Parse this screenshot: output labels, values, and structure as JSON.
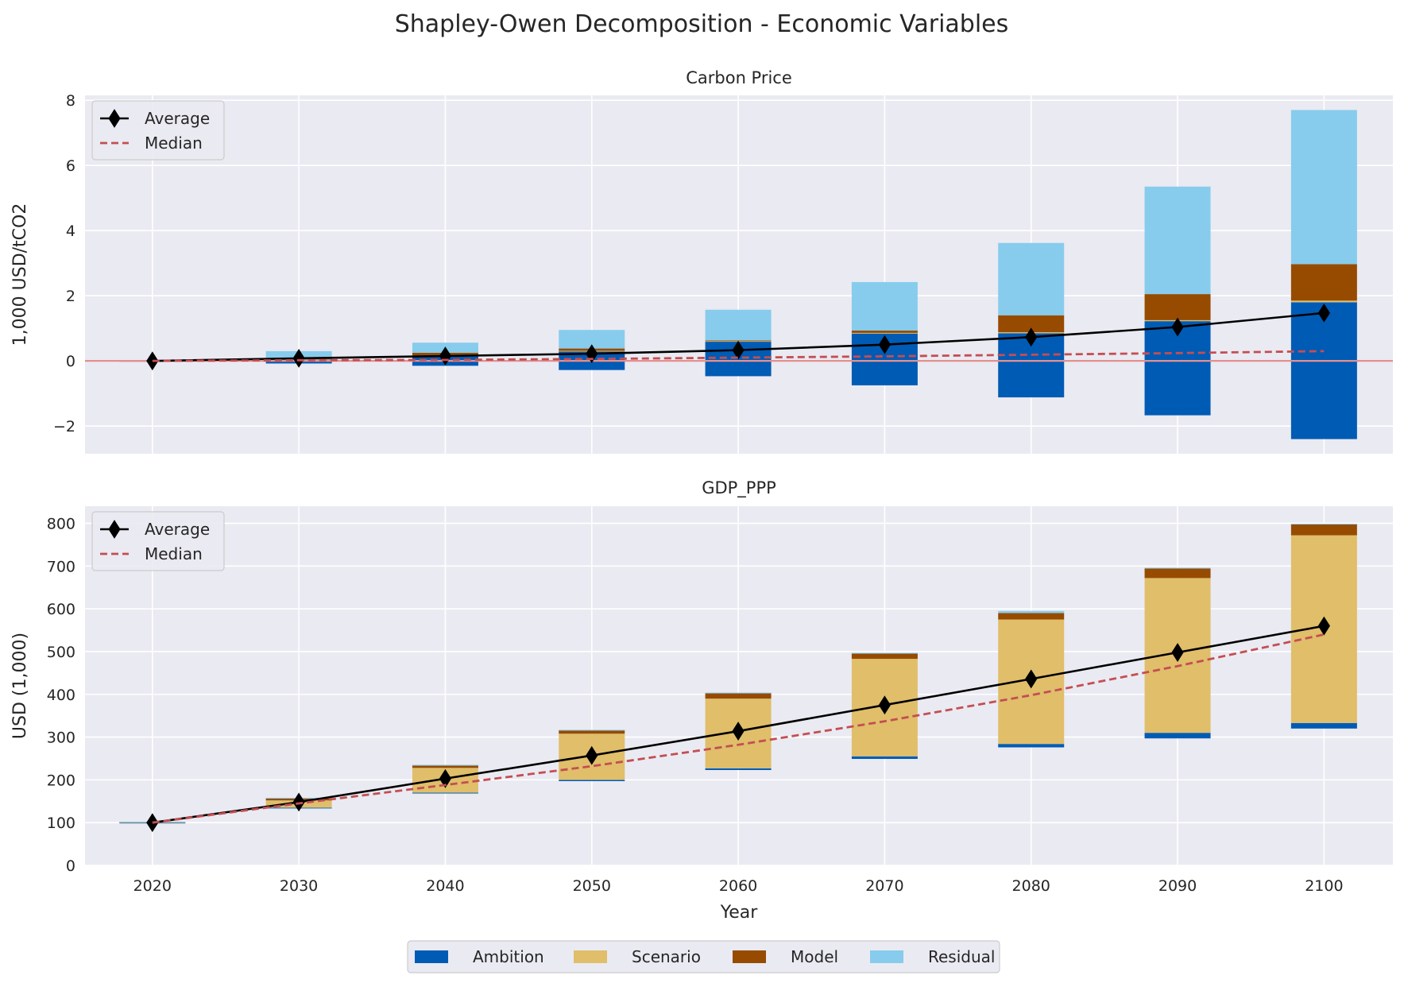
{
  "title": "Shapley-Owen Decomposition - Economic Variables",
  "xlabel": "Year",
  "colors": {
    "background": "#EAEAF2",
    "grid": "#FFFFFF",
    "Ambition": "#005BB5",
    "Scenario": "#E0BE6A",
    "Model": "#964B00",
    "Residual": "#87CCEC",
    "average": "#000000",
    "median": "#C44E52",
    "zero_line": "#E3908F"
  },
  "legend": {
    "position": "bottom-center",
    "entries": [
      "Ambition",
      "Scenario",
      "Model",
      "Residual"
    ]
  },
  "chart_data": [
    {
      "type": "bar",
      "stacked": true,
      "title": "Carbon Price",
      "ylabel": "1,000 USD/tCO2",
      "ylim": [
        -2.85,
        8.15
      ],
      "yticks": [
        -2,
        0,
        2,
        4,
        6,
        8
      ],
      "yticklabels": [
        "−2",
        "0",
        "2",
        "4",
        "6",
        "8"
      ],
      "grid": true,
      "zero_line": true,
      "legend": {
        "position": "top-left",
        "entries": [
          "Average",
          "Median"
        ]
      },
      "categories": [
        "2020",
        "2030",
        "2040",
        "2050",
        "2060",
        "2070",
        "2080",
        "2090",
        "2100"
      ],
      "series": [
        {
          "name": "Ambition",
          "segments": [
            [
              0,
              0
            ],
            [
              -0.08,
              0.05
            ],
            [
              -0.15,
              0.15
            ],
            [
              -0.28,
              0.3
            ],
            [
              -0.47,
              0.6
            ],
            [
              -0.75,
              0.85
            ],
            [
              -1.12,
              0.85
            ],
            [
              -1.67,
              1.22
            ],
            [
              -2.4,
              1.8
            ]
          ]
        },
        {
          "name": "Scenario",
          "segments": [
            [
              0,
              0
            ],
            [
              0.05,
              0.06
            ],
            [
              0.15,
              0.16
            ],
            [
              0.3,
              0.31
            ],
            [
              0.6,
              0.61
            ],
            [
              0.85,
              0.86
            ],
            [
              0.85,
              0.88
            ],
            [
              1.22,
              1.25
            ],
            [
              1.8,
              1.85
            ]
          ]
        },
        {
          "name": "Model",
          "segments": [
            [
              0,
              0.01
            ],
            [
              0.06,
              0.08
            ],
            [
              0.16,
              0.25
            ],
            [
              0.31,
              0.38
            ],
            [
              0.61,
              0.63
            ],
            [
              0.86,
              0.93
            ],
            [
              0.88,
              1.4
            ],
            [
              1.25,
              2.05
            ],
            [
              1.85,
              2.97
            ]
          ]
        },
        {
          "name": "Residual",
          "segments": [
            [
              0.01,
              0.02
            ],
            [
              0.08,
              0.3
            ],
            [
              0.25,
              0.56
            ],
            [
              0.38,
              0.95
            ],
            [
              0.63,
              1.57
            ],
            [
              0.93,
              2.42
            ],
            [
              1.4,
              3.62
            ],
            [
              2.05,
              5.35
            ],
            [
              2.97,
              7.7
            ]
          ]
        }
      ],
      "lines": [
        {
          "name": "Average",
          "style": "solid-diamond",
          "x": [
            "2020",
            "2030",
            "2040",
            "2050",
            "2060",
            "2070",
            "2080",
            "2090",
            "2100"
          ],
          "values": [
            0.0,
            0.08,
            0.15,
            0.22,
            0.33,
            0.5,
            0.73,
            1.04,
            1.47
          ]
        },
        {
          "name": "Median",
          "style": "dashed",
          "x": [
            "2020",
            "2030",
            "2040",
            "2050",
            "2060",
            "2070",
            "2080",
            "2090",
            "2100"
          ],
          "values": [
            0.0,
            0.02,
            0.03,
            0.06,
            0.1,
            0.14,
            0.19,
            0.24,
            0.3
          ]
        }
      ]
    },
    {
      "type": "bar",
      "stacked": true,
      "title": "GDP_PPP",
      "ylabel": "USD (1,000)",
      "ylim": [
        0,
        840
      ],
      "yticks": [
        0,
        100,
        200,
        300,
        400,
        500,
        600,
        700,
        800
      ],
      "yticklabels": [
        "0",
        "100",
        "200",
        "300",
        "400",
        "500",
        "600",
        "700",
        "800"
      ],
      "grid": true,
      "zero_line": false,
      "legend": {
        "position": "top-left",
        "entries": [
          "Average",
          "Median"
        ]
      },
      "categories": [
        "2020",
        "2030",
        "2040",
        "2050",
        "2060",
        "2070",
        "2080",
        "2090",
        "2100"
      ],
      "series": [
        {
          "name": "Ambition",
          "segments": [
            [
              99,
              100
            ],
            [
              134,
              135
            ],
            [
              169,
              170
            ],
            [
              197,
              200
            ],
            [
              223,
              227
            ],
            [
              249,
              255
            ],
            [
              276,
              284
            ],
            [
              297,
              310
            ],
            [
              320,
              333
            ]
          ]
        },
        {
          "name": "Scenario",
          "segments": [
            [
              100,
              101
            ],
            [
              135,
              152
            ],
            [
              170,
              228
            ],
            [
              200,
              308
            ],
            [
              227,
              390
            ],
            [
              255,
              483
            ],
            [
              284,
              575
            ],
            [
              310,
              672
            ],
            [
              333,
              772
            ]
          ]
        },
        {
          "name": "Model",
          "segments": [
            [
              101,
              102
            ],
            [
              152,
              158
            ],
            [
              228,
              235
            ],
            [
              308,
              316
            ],
            [
              390,
              403
            ],
            [
              483,
              496
            ],
            [
              575,
              590
            ],
            [
              672,
              695
            ],
            [
              772,
              798
            ]
          ]
        },
        {
          "name": "Residual",
          "segments": [
            [
              102,
              102
            ],
            [
              158,
              158
            ],
            [
              235,
              235
            ],
            [
              316,
              317
            ],
            [
              403,
              404
            ],
            [
              496,
              497
            ],
            [
              590,
              595
            ],
            [
              695,
              696
            ],
            [
              798,
              799
            ]
          ]
        }
      ],
      "lines": [
        {
          "name": "Average",
          "style": "solid-diamond",
          "x": [
            "2020",
            "2030",
            "2040",
            "2050",
            "2060",
            "2070",
            "2080",
            "2090",
            "2100"
          ],
          "values": [
            100,
            148,
            203,
            257,
            314,
            375,
            436,
            498,
            560
          ]
        },
        {
          "name": "Median",
          "style": "dashed",
          "x": [
            "2020",
            "2030",
            "2040",
            "2050",
            "2060",
            "2070",
            "2080",
            "2090",
            "2100"
          ],
          "values": [
            100,
            145,
            188,
            232,
            282,
            337,
            398,
            466,
            540
          ]
        }
      ]
    }
  ]
}
